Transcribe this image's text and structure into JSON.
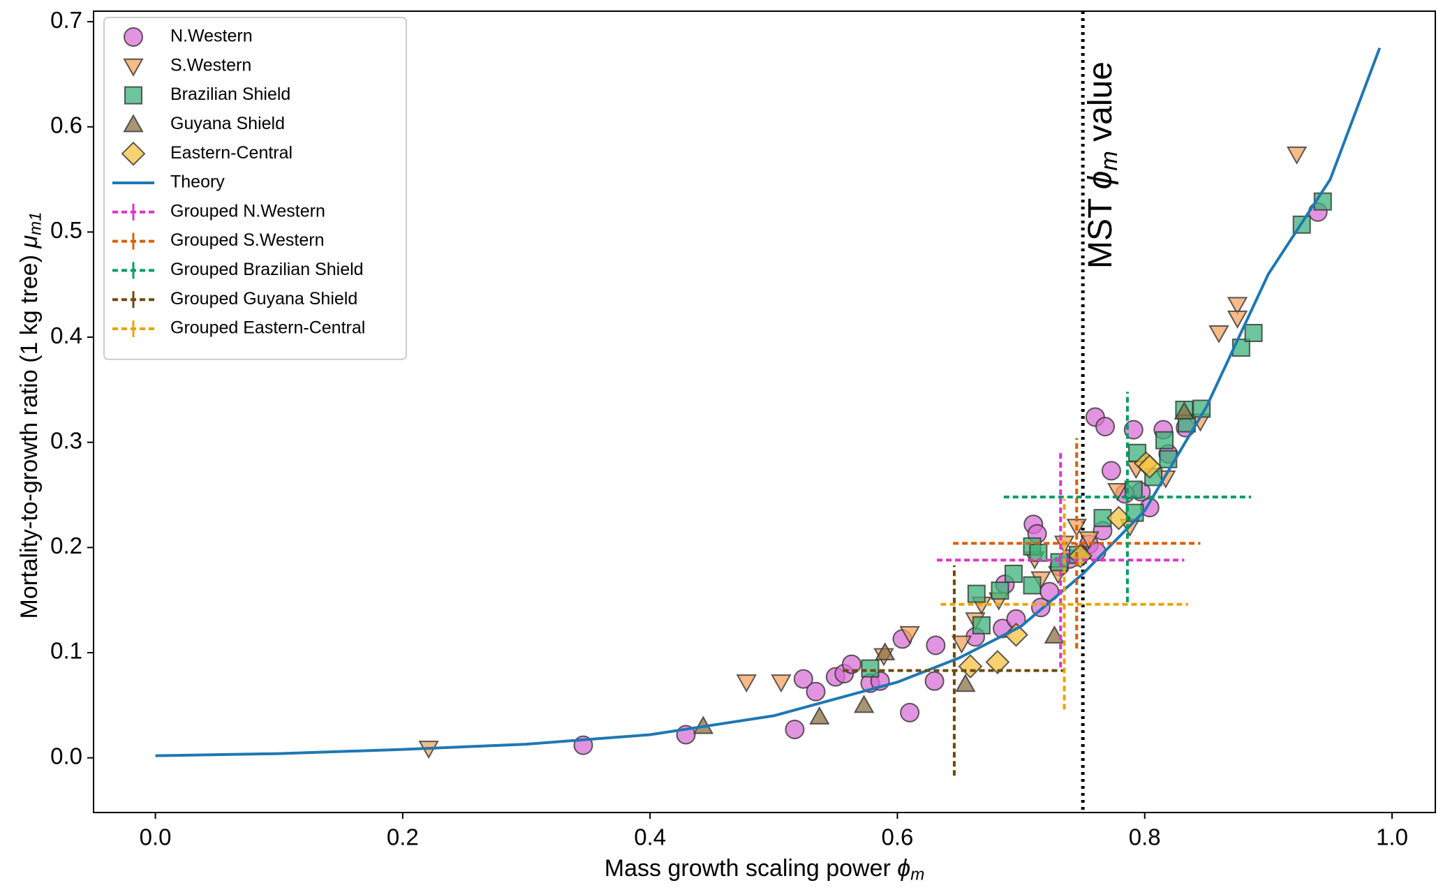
{
  "chart_data": {
    "type": "scatter",
    "xlabel_parts": [
      "Mass growth scaling power ",
      "ϕ",
      "m"
    ],
    "ylabel_parts": [
      "Mortality-to-growth ratio (1 kg tree) ",
      "μ",
      "m1"
    ],
    "xlim": [
      -0.05,
      1.035
    ],
    "ylim": [
      -0.052,
      0.71
    ],
    "xticks": [
      {
        "value": 0,
        "label": "0.0"
      },
      0.2,
      0.4,
      0.6,
      0.8,
      {
        "value": 1,
        "label": "1.0"
      }
    ],
    "yticks": [
      {
        "value": 0,
        "label": "0.0"
      },
      0.1,
      0.2,
      0.3,
      0.4,
      0.5,
      0.6,
      0.7
    ],
    "grid": false,
    "legend": "upper left",
    "vline": {
      "x": 0.75,
      "label_parts": [
        "MST ",
        "ϕ",
        "m",
        " value"
      ]
    },
    "series": [
      {
        "name": "N.Western",
        "marker": "circle",
        "color": "#da70d6",
        "x": [
          0.346,
          0.429,
          0.517,
          0.524,
          0.534,
          0.55,
          0.557,
          0.563,
          0.578,
          0.586,
          0.604,
          0.61,
          0.63,
          0.631,
          0.663,
          0.685,
          0.687,
          0.696,
          0.71,
          0.713,
          0.716,
          0.723,
          0.731,
          0.739,
          0.755,
          0.76,
          0.768,
          0.761,
          0.773,
          0.791,
          0.797,
          0.804,
          0.815,
          0.819,
          0.833,
          0.94,
          0.766,
          0.784
        ],
        "values": [
          0.012,
          0.022,
          0.027,
          0.075,
          0.063,
          0.077,
          0.08,
          0.089,
          0.071,
          0.073,
          0.113,
          0.043,
          0.073,
          0.107,
          0.115,
          0.123,
          0.165,
          0.132,
          0.222,
          0.213,
          0.143,
          0.158,
          0.182,
          0.189,
          0.203,
          0.324,
          0.315,
          0.196,
          0.273,
          0.312,
          0.253,
          0.238,
          0.312,
          0.289,
          0.314,
          0.519,
          0.216,
          0.251
        ]
      },
      {
        "name": "S.Western",
        "marker": "tri-down",
        "color": "#f4a460",
        "x": [
          0.221,
          0.478,
          0.506,
          0.589,
          0.61,
          0.652,
          0.663,
          0.668,
          0.682,
          0.711,
          0.716,
          0.73,
          0.735,
          0.745,
          0.778,
          0.788,
          0.793,
          0.817,
          0.845,
          0.86,
          0.875,
          0.875,
          0.923,
          0.755
        ],
        "values": [
          0.009,
          0.072,
          0.072,
          0.097,
          0.118,
          0.109,
          0.131,
          0.146,
          0.15,
          0.189,
          0.17,
          0.175,
          0.204,
          0.22,
          0.254,
          0.22,
          0.275,
          0.266,
          0.32,
          0.404,
          0.431,
          0.418,
          0.574,
          0.208
        ]
      },
      {
        "name": "Brazilian Shield",
        "marker": "square",
        "color": "#3cb37a",
        "x": [
          0.578,
          0.664,
          0.668,
          0.683,
          0.694,
          0.709,
          0.714,
          0.709,
          0.731,
          0.746,
          0.766,
          0.791,
          0.792,
          0.794,
          0.807,
          0.816,
          0.819,
          0.832,
          0.834,
          0.846,
          0.878,
          0.888,
          0.927,
          0.944
        ],
        "values": [
          0.085,
          0.156,
          0.126,
          0.159,
          0.175,
          0.201,
          0.195,
          0.164,
          0.186,
          0.193,
          0.228,
          0.255,
          0.233,
          0.29,
          0.267,
          0.302,
          0.284,
          0.331,
          0.318,
          0.332,
          0.39,
          0.404,
          0.507,
          0.529
        ]
      },
      {
        "name": "Guyana Shield",
        "marker": "tri-up",
        "color": "#8c7046",
        "x": [
          0.443,
          0.537,
          0.573,
          0.59,
          0.655,
          0.727,
          0.749,
          0.832
        ],
        "values": [
          0.03,
          0.039,
          0.05,
          0.1,
          0.07,
          0.116,
          0.196,
          0.329
        ]
      },
      {
        "name": "Eastern-Central",
        "marker": "diamond",
        "color": "#f5c242",
        "x": [
          0.659,
          0.681,
          0.696,
          0.779,
          0.801,
          0.804,
          0.748
        ],
        "values": [
          0.087,
          0.091,
          0.117,
          0.228,
          0.28,
          0.277,
          0.192
        ]
      },
      {
        "name": "Theory",
        "marker": "line",
        "color": "#1f77b4",
        "x": [
          0,
          0.1,
          0.2,
          0.3,
          0.4,
          0.5,
          0.6,
          0.65,
          0.7,
          0.75,
          0.8,
          0.85,
          0.9,
          0.95,
          0.99
        ],
        "values": [
          0.002,
          0.004,
          0.008,
          0.013,
          0.022,
          0.04,
          0.072,
          0.095,
          0.125,
          0.175,
          0.235,
          0.334,
          0.46,
          0.55,
          0.675
        ]
      },
      {
        "name": "Grouped N.Western",
        "marker": "errorbar",
        "color": "#e033c8",
        "x": [
          0.732
        ],
        "values": [
          0.188
        ],
        "xerr": [
          0.1
        ],
        "yerr": [
          0.102
        ]
      },
      {
        "name": "Grouped S.Western",
        "marker": "errorbar",
        "color": "#d95f02",
        "x": [
          0.745
        ],
        "values": [
          0.204
        ],
        "xerr": [
          0.1
        ],
        "yerr": [
          0.1
        ]
      },
      {
        "name": "Grouped Brazilian Shield",
        "marker": "errorbar",
        "color": "#009e60",
        "x": [
          0.786
        ],
        "values": [
          0.248
        ],
        "xerr": [
          0.1
        ],
        "yerr": [
          0.1
        ]
      },
      {
        "name": "Grouped Guyana Shield",
        "marker": "errorbar",
        "color": "#6b4a0f",
        "x": [
          0.646
        ],
        "values": [
          0.083
        ],
        "xerr": [
          0.09
        ],
        "yerr": [
          0.1
        ]
      },
      {
        "name": "Grouped Eastern-Central",
        "marker": "errorbar",
        "color": "#e6a50a",
        "x": [
          0.735
        ],
        "values": [
          0.146
        ],
        "xerr": [
          0.1
        ],
        "yerr": [
          0.1
        ]
      }
    ]
  }
}
